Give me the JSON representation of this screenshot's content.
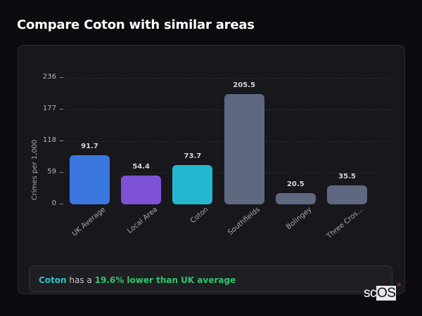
{
  "page": {
    "title": "Compare Coton with similar areas"
  },
  "chart_data": {
    "type": "bar",
    "title": "Compare Coton with similar areas",
    "xlabel": "",
    "ylabel": "Crimes per 1,000",
    "ylim": [
      0,
      236
    ],
    "yticks": [
      0,
      59,
      118,
      177,
      236
    ],
    "grid": true,
    "legend": null,
    "categories": [
      "UK Average",
      "Local Area",
      "Coton",
      "Southfields",
      "Bolingey",
      "Three Cros..."
    ],
    "values": [
      91.7,
      54.4,
      73.7,
      205.5,
      20.5,
      35.5
    ],
    "value_labels": [
      "91.7",
      "54.4",
      "73.7",
      "205.5",
      "20.5",
      "35.5"
    ],
    "colors": [
      "#3a78e0",
      "#7d52d6",
      "#23b8d0",
      "#5e6880",
      "#5e6880",
      "#5e6880"
    ]
  },
  "summary": {
    "area_name": "Coton",
    "middle_text": " has a ",
    "stat_text": "19.6% lower than UK average"
  },
  "branding": {
    "logo_prefix": "sc",
    "logo_box": "OS",
    "logo_mark": "®"
  }
}
